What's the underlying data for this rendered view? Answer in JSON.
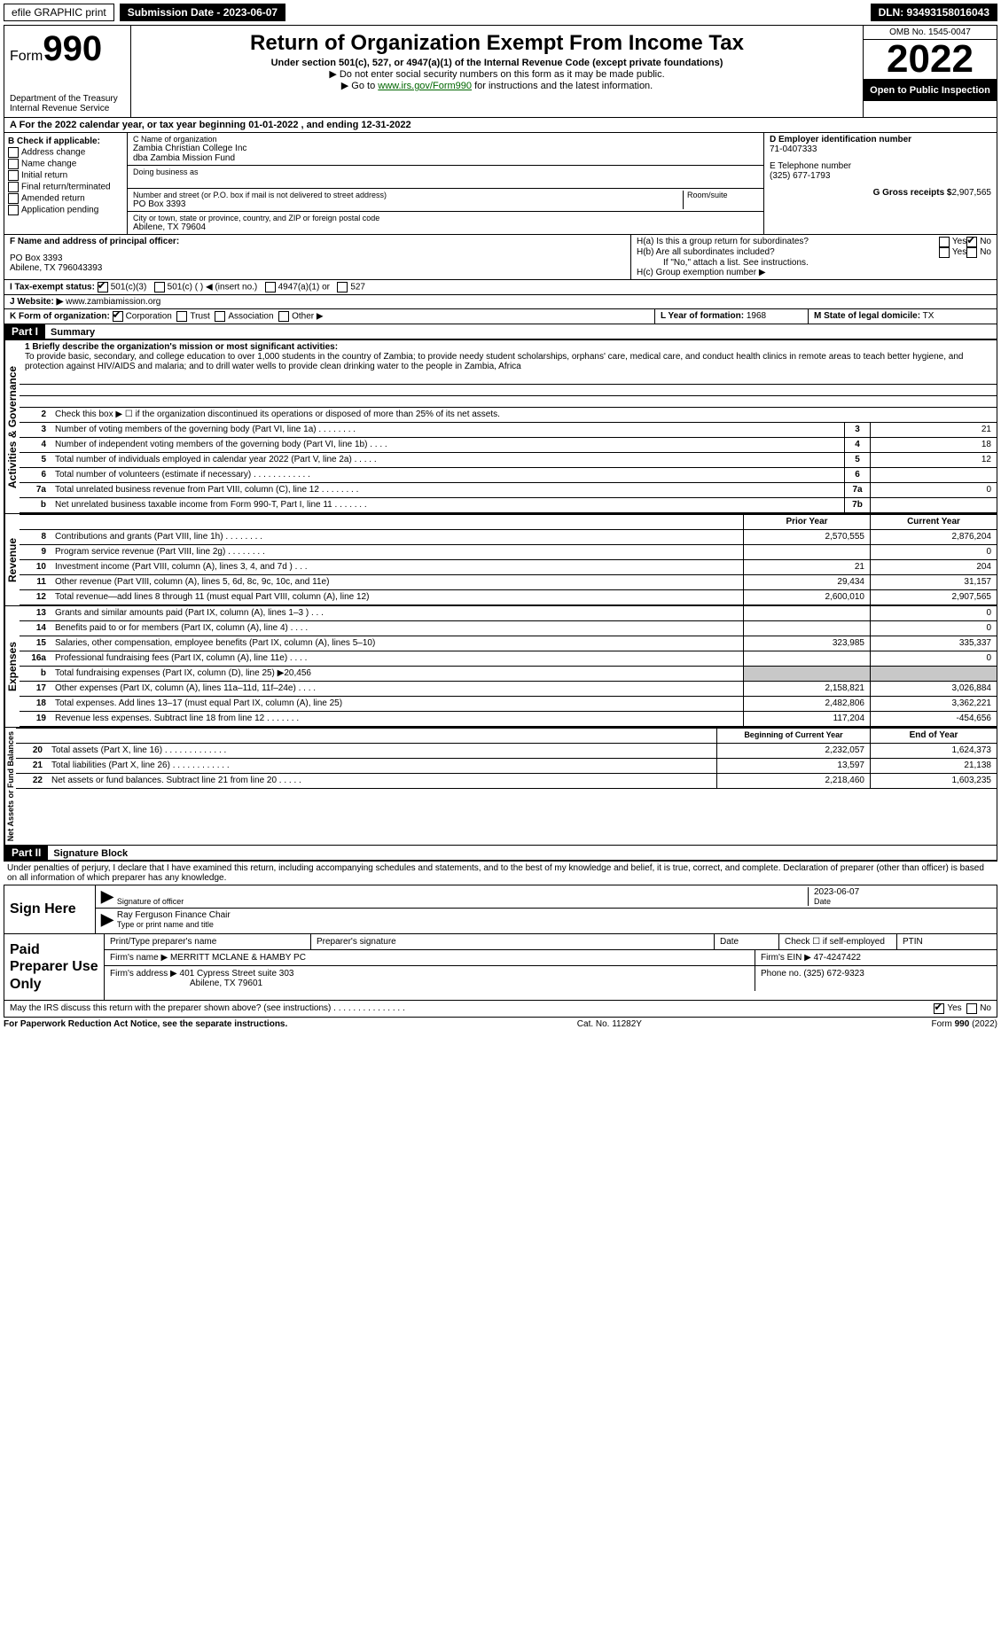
{
  "topbar": {
    "efile": "efile GRAPHIC print",
    "submission_label": "Submission Date - 2023-06-07",
    "dln": "DLN: 93493158016043"
  },
  "header": {
    "form_word": "Form",
    "form_num": "990",
    "title": "Return of Organization Exempt From Income Tax",
    "subtitle": "Under section 501(c), 527, or 4947(a)(1) of the Internal Revenue Code (except private foundations)",
    "note1": "▶ Do not enter social security numbers on this form as it may be made public.",
    "note2_pre": "▶ Go to ",
    "note2_link": "www.irs.gov/Form990",
    "note2_post": " for instructions and the latest information.",
    "dept": "Department of the Treasury\nInternal Revenue Service",
    "omb": "OMB No. 1545-0047",
    "year": "2022",
    "open": "Open to Public Inspection"
  },
  "rowA": "A For the 2022 calendar year, or tax year beginning 01-01-2022    , and ending 12-31-2022",
  "boxB": {
    "title": "B Check if applicable:",
    "items": [
      "Address change",
      "Name change",
      "Initial return",
      "Final return/terminated",
      "Amended return",
      "Application pending"
    ]
  },
  "boxC": {
    "name_lbl": "C Name of organization",
    "name": "Zambia Christian College Inc",
    "dba": "dba Zambia Mission Fund",
    "dba_lbl": "Doing business as",
    "street_lbl": "Number and street (or P.O. box if mail is not delivered to street address)",
    "room_lbl": "Room/suite",
    "street": "PO Box 3393",
    "city_lbl": "City or town, state or province, country, and ZIP or foreign postal code",
    "city": "Abilene, TX  79604"
  },
  "boxD": {
    "lbl": "D Employer identification number",
    "val": "71-0407333"
  },
  "boxE": {
    "lbl": "E Telephone number",
    "val": "(325) 677-1793"
  },
  "boxG": {
    "lbl": "G Gross receipts $",
    "val": "2,907,565"
  },
  "boxF": {
    "lbl": "F  Name and address of principal officer:",
    "line1": "PO Box 3393",
    "line2": "Abilene, TX  796043393"
  },
  "boxH": {
    "a": "H(a)  Is this a group return for subordinates?",
    "b": "H(b)  Are all subordinates included?",
    "note": "If \"No,\" attach a list. See instructions.",
    "c": "H(c)  Group exemption number ▶",
    "yes": "Yes",
    "no": "No"
  },
  "boxI": {
    "lbl": "I  Tax-exempt status:",
    "opts": [
      "501(c)(3)",
      "501(c) (   ) ◀ (insert no.)",
      "4947(a)(1) or",
      "527"
    ]
  },
  "boxJ": {
    "lbl": "J  Website: ▶",
    "val": "www.zambiamission.org"
  },
  "boxK": {
    "lbl": "K Form of organization:",
    "opts": [
      "Corporation",
      "Trust",
      "Association",
      "Other ▶"
    ]
  },
  "boxL": {
    "lbl": "L Year of formation:",
    "val": "1968"
  },
  "boxM": {
    "lbl": "M State of legal domicile:",
    "val": "TX"
  },
  "part1": {
    "num": "Part I",
    "title": "Summary"
  },
  "summary": {
    "line1_lbl": "1  Briefly describe the organization's mission or most significant activities:",
    "mission": "To provide basic, secondary, and college education to over 1,000 students in the country of Zambia; to provide needy student scholarships, orphans' care, medical care, and conduct health clinics in remote areas to teach better hygiene, and protection against HIV/AIDS and malaria; and to drill water wells to provide clean drinking water to the people in Zambia, Africa",
    "line2": "Check this box ▶ ☐  if the organization discontinued its operations or disposed of more than 25% of its net assets.",
    "tabs": {
      "gov": "Activities & Governance",
      "rev": "Revenue",
      "exp": "Expenses",
      "net": "Net Assets or Fund Balances"
    },
    "hdr_prior": "Prior Year",
    "hdr_current": "Current Year",
    "hdr_begin": "Beginning of Current Year",
    "hdr_end": "End of Year",
    "rows_gov": [
      {
        "n": "3",
        "t": "Number of voting members of the governing body (Part VI, line 1a)   .    .    .    .    .    .    .    .",
        "b": "3",
        "v": "21"
      },
      {
        "n": "4",
        "t": "Number of independent voting members of the governing body (Part VI, line 1b)    .    .    .    .",
        "b": "4",
        "v": "18"
      },
      {
        "n": "5",
        "t": "Total number of individuals employed in calendar year 2022 (Part V, line 2a)   .    .    .    .    .",
        "b": "5",
        "v": "12"
      },
      {
        "n": "6",
        "t": "Total number of volunteers (estimate if necessary)    .    .    .    .    .    .    .    .    .    .    .    .",
        "b": "6",
        "v": ""
      },
      {
        "n": "7a",
        "t": "Total unrelated business revenue from Part VIII, column (C), line 12   .    .    .    .    .    .    .    .",
        "b": "7a",
        "v": "0"
      },
      {
        "n": "b",
        "t": "Net unrelated business taxable income from Form 990-T, Part I, line 11   .    .    .    .    .    .    .",
        "b": "7b",
        "v": ""
      }
    ],
    "rows_rev": [
      {
        "n": "8",
        "t": "Contributions and grants (Part VIII, line 1h)   .    .    .    .    .    .    .    .",
        "p": "2,570,555",
        "c": "2,876,204"
      },
      {
        "n": "9",
        "t": "Program service revenue (Part VIII, line 2g)   .    .    .    .    .    .    .    .",
        "p": "",
        "c": "0"
      },
      {
        "n": "10",
        "t": "Investment income (Part VIII, column (A), lines 3, 4, and 7d )   .    .    .",
        "p": "21",
        "c": "204"
      },
      {
        "n": "11",
        "t": "Other revenue (Part VIII, column (A), lines 5, 6d, 8c, 9c, 10c, and 11e)",
        "p": "29,434",
        "c": "31,157"
      },
      {
        "n": "12",
        "t": "Total revenue—add lines 8 through 11 (must equal Part VIII, column (A), line 12)",
        "p": "2,600,010",
        "c": "2,907,565"
      }
    ],
    "rows_exp": [
      {
        "n": "13",
        "t": "Grants and similar amounts paid (Part IX, column (A), lines 1–3 )   .    .    .",
        "p": "",
        "c": "0"
      },
      {
        "n": "14",
        "t": "Benefits paid to or for members (Part IX, column (A), line 4)   .    .    .    .",
        "p": "",
        "c": "0"
      },
      {
        "n": "15",
        "t": "Salaries, other compensation, employee benefits (Part IX, column (A), lines 5–10)",
        "p": "323,985",
        "c": "335,337"
      },
      {
        "n": "16a",
        "t": "Professional fundraising fees (Part IX, column (A), line 11e)   .    .    .    .",
        "p": "",
        "c": "0"
      },
      {
        "n": "b",
        "t": "Total fundraising expenses (Part IX, column (D), line 25) ▶20,456",
        "p": "shade",
        "c": "shade"
      },
      {
        "n": "17",
        "t": "Other expenses (Part IX, column (A), lines 11a–11d, 11f–24e)   .    .    .    .",
        "p": "2,158,821",
        "c": "3,026,884"
      },
      {
        "n": "18",
        "t": "Total expenses. Add lines 13–17 (must equal Part IX, column (A), line 25)",
        "p": "2,482,806",
        "c": "3,362,221"
      },
      {
        "n": "19",
        "t": "Revenue less expenses. Subtract line 18 from line 12   .    .    .    .    .    .    .",
        "p": "117,204",
        "c": "-454,656"
      }
    ],
    "rows_net": [
      {
        "n": "20",
        "t": "Total assets (Part X, line 16)  .    .    .    .    .    .    .    .    .    .    .    .    .",
        "p": "2,232,057",
        "c": "1,624,373"
      },
      {
        "n": "21",
        "t": "Total liabilities (Part X, line 26)  .    .    .    .    .    .    .    .    .    .    .    .",
        "p": "13,597",
        "c": "21,138"
      },
      {
        "n": "22",
        "t": "Net assets or fund balances. Subtract line 21 from line 20   .    .    .    .    .",
        "p": "2,218,460",
        "c": "1,603,235"
      }
    ]
  },
  "part2": {
    "num": "Part II",
    "title": "Signature Block"
  },
  "sig": {
    "penalty": "Under penalties of perjury, I declare that I have examined this return, including accompanying schedules and statements, and to the best of my knowledge and belief, it is true, correct, and complete. Declaration of preparer (other than officer) is based on all information of which preparer has any knowledge.",
    "sign_here": "Sign Here",
    "sig_officer": "Signature of officer",
    "date": "Date",
    "date_val": "2023-06-07",
    "name": "Ray Ferguson  Finance Chair",
    "name_lbl": "Type or print name and title",
    "paid": "Paid Preparer Use Only",
    "prep_name_lbl": "Print/Type preparer's name",
    "prep_sig_lbl": "Preparer's signature",
    "prep_date_lbl": "Date",
    "self_emp": "Check ☐ if self-employed",
    "ptin": "PTIN",
    "firm_name_lbl": "Firm's name    ▶",
    "firm_name": "MERRITT MCLANE & HAMBY PC",
    "firm_ein_lbl": "Firm's EIN ▶",
    "firm_ein": "47-4247422",
    "firm_addr_lbl": "Firm's address ▶",
    "firm_addr1": "401 Cypress Street suite 303",
    "firm_addr2": "Abilene, TX  79601",
    "phone_lbl": "Phone no.",
    "phone": "(325) 672-9323",
    "discuss": "May the IRS discuss this return with the preparer shown above? (see instructions)   .    .    .    .    .    .    .    .    .    .    .    .    .    .    .",
    "yes": "Yes",
    "no": "No"
  },
  "footer": {
    "left": "For Paperwork Reduction Act Notice, see the separate instructions.",
    "mid": "Cat. No. 11282Y",
    "right": "Form 990 (2022)"
  }
}
